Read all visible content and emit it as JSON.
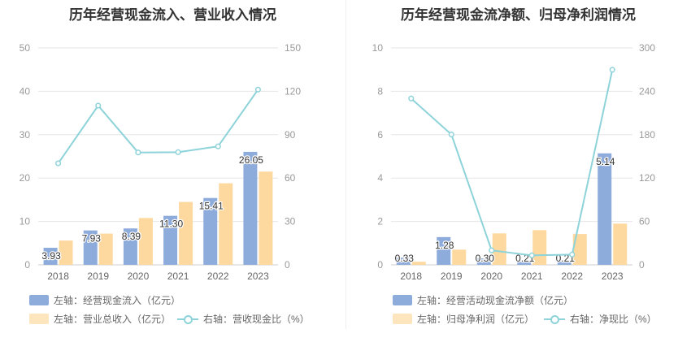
{
  "colors": {
    "bar1": "#8eacdb",
    "bar2": "#fdd9a0",
    "line": "#8dd3d9",
    "grid": "#e6e6e6",
    "axis": "#cccccc"
  },
  "chart_data": [
    {
      "type": "bar",
      "title": "历年经营现金流入、营业收入情况",
      "categories": [
        "2018",
        "2019",
        "2020",
        "2021",
        "2022",
        "2023"
      ],
      "left_axis": {
        "min": 0,
        "max": 50,
        "ticks": [
          0,
          10,
          20,
          30,
          40,
          50
        ]
      },
      "right_axis": {
        "min": 0,
        "max": 150,
        "ticks": [
          0,
          30,
          60,
          90,
          120,
          150
        ]
      },
      "series": [
        {
          "name": "左轴：经营现金流入（亿元）",
          "type": "bar",
          "axis": "left",
          "values": [
            3.93,
            7.93,
            8.39,
            11.3,
            15.41,
            26.05
          ],
          "labels": [
            "3.93",
            "7.93",
            "8.39",
            "11.30",
            "15.41",
            "26.05"
          ]
        },
        {
          "name": "左轴：营业总收入（亿元）",
          "type": "bar",
          "axis": "left",
          "values": [
            5.6,
            7.2,
            10.8,
            14.5,
            18.8,
            21.5
          ]
        },
        {
          "name": "右轴：营收现金比（%）",
          "type": "line",
          "axis": "right",
          "values": [
            70.2,
            110.1,
            77.7,
            77.9,
            81.9,
            121.2
          ]
        }
      ],
      "legend_position": "bottom",
      "grid": true
    },
    {
      "type": "bar",
      "title": "历年经营现金流净额、归母净利润情况",
      "categories": [
        "2018",
        "2019",
        "2020",
        "2021",
        "2022",
        "2023"
      ],
      "left_axis": {
        "min": 0,
        "max": 10,
        "ticks": [
          0,
          2,
          4,
          6,
          8,
          10
        ]
      },
      "right_axis": {
        "min": 0,
        "max": 300,
        "ticks": [
          0,
          60,
          120,
          180,
          240,
          300
        ]
      },
      "series": [
        {
          "name": "左轴：经营活动现金流净额（亿元）",
          "type": "bar",
          "axis": "left",
          "values": [
            0.33,
            1.28,
            0.3,
            0.21,
            0.21,
            5.14
          ],
          "labels": [
            "0.33",
            "1.28",
            "0.30",
            "0.21",
            "0.21",
            "5.14"
          ]
        },
        {
          "name": "左轴：归母净利润（亿元）",
          "type": "bar",
          "axis": "left",
          "values": [
            0.14,
            0.7,
            1.45,
            1.6,
            1.42,
            1.9
          ]
        },
        {
          "name": "右轴：净现比（%）",
          "type": "line",
          "axis": "right",
          "values": [
            230.1,
            180.3,
            20.0,
            13.1,
            14.2,
            269.8
          ]
        }
      ],
      "legend_position": "bottom",
      "grid": true
    }
  ]
}
